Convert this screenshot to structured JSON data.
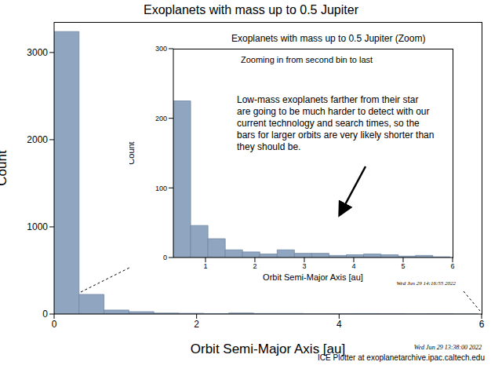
{
  "chart_data": [
    {
      "type": "histogram",
      "title": "Exoplanets with mass up to 0.5 Jupiter",
      "x_label": "Orbit Semi-Major Axis [au]",
      "y_label": "Count",
      "bins": [
        0,
        0.35,
        0.7,
        1.05,
        1.4,
        1.75,
        2.1,
        2.45,
        2.8,
        3.15,
        3.5,
        3.85,
        4.2,
        4.55,
        4.9,
        5.25,
        5.6,
        5.95
      ],
      "values": [
        3240,
        225,
        46,
        27,
        11,
        8,
        5,
        11,
        6,
        6,
        3,
        4,
        5,
        4,
        2,
        3,
        1
      ],
      "color": "#8fa5c0",
      "xlim": [
        0,
        6
      ],
      "xticks": [
        0,
        2,
        4,
        6
      ],
      "ylim": [
        0,
        3350
      ],
      "yticks": [
        0,
        1000,
        2000,
        3000
      ],
      "grid": false,
      "annotations": [
        "Wed Jun 29 13:38:00 2022",
        "ICE Plotter at exoplanetarchive.ipac.caltech.edu"
      ]
    },
    {
      "type": "histogram",
      "title": "Exoplanets with mass up to 0.5 Jupiter (Zoom)",
      "x_label": "Orbit Semi-Major Axis [au]",
      "y_label": "Count",
      "bins": [
        0.35,
        0.7,
        1.05,
        1.4,
        1.75,
        2.1,
        2.45,
        2.8,
        3.15,
        3.5,
        3.85,
        4.2,
        4.55,
        4.9,
        5.25,
        5.6,
        5.95
      ],
      "values": [
        225,
        46,
        27,
        11,
        8,
        5,
        11,
        6,
        6,
        3,
        4,
        5,
        4,
        2,
        3,
        1
      ],
      "color": "#8fa5c0",
      "xlim": [
        0.35,
        6
      ],
      "xticks": [
        1,
        2,
        3,
        4,
        5,
        6
      ],
      "ylim": [
        0,
        300
      ],
      "yticks": [
        0,
        100,
        200,
        300
      ],
      "grid": false,
      "annotations": [
        "Zooming in from second bin to last",
        "Low-mass exoplanets farther from their star are going to be much harder to detect with our current technology and search times, so the bars for larger orbits are very likely shorter than they should be.",
        "Wed Jun 29 14:16:55 2022"
      ]
    }
  ]
}
